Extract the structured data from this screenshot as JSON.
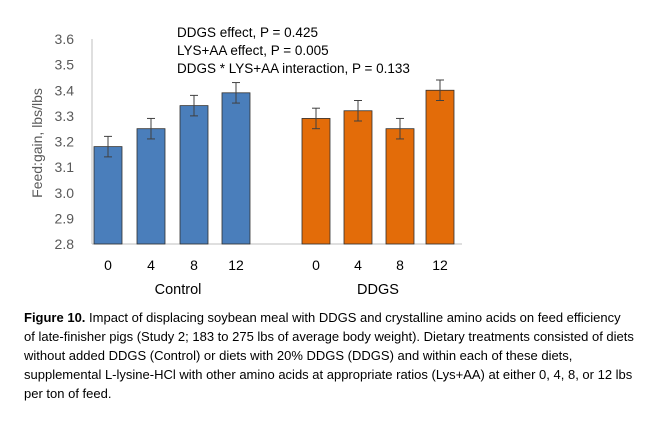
{
  "chart_data": {
    "type": "bar",
    "ylabel": "Feed:gain, lbs/lbs",
    "ylim": [
      2.8,
      3.6
    ],
    "yticks": [
      "2.8",
      "2.9",
      "3.0",
      "3.1",
      "3.2",
      "3.3",
      "3.4",
      "3.5",
      "3.6"
    ],
    "grid": false,
    "annotations": [
      "DDGS effect, P = 0.425",
      "LYS+AA effect, P = 0.005",
      "DDGS * LYS+AA interaction, P = 0.133"
    ],
    "groups": [
      {
        "name": "Control",
        "color": "#4a7ebb",
        "categories": [
          "0",
          "4",
          "8",
          "12"
        ],
        "values": [
          3.18,
          3.25,
          3.34,
          3.39
        ],
        "errors": [
          0.04,
          0.04,
          0.04,
          0.04
        ]
      },
      {
        "name": "DDGS",
        "color": "#e36c09",
        "categories": [
          "0",
          "4",
          "8",
          "12"
        ],
        "values": [
          3.29,
          3.32,
          3.25,
          3.4
        ],
        "errors": [
          0.04,
          0.04,
          0.04,
          0.04
        ]
      }
    ]
  },
  "caption": {
    "label": "Figure 10.",
    "text": " Impact of displacing soybean meal with DDGS and crystalline amino acids on feed efficiency of late-finisher pigs (Study 2; 183 to 275 lbs of average body weight). Dietary treatments consisted of diets without added DDGS (Control) or diets with 20% DDGS (DDGS) and within each of these diets, supplemental L-lysine-HCl with other amino acids at appropriate ratios (Lys+AA) at either 0, 4, 8, or 12 lbs per ton of feed."
  }
}
